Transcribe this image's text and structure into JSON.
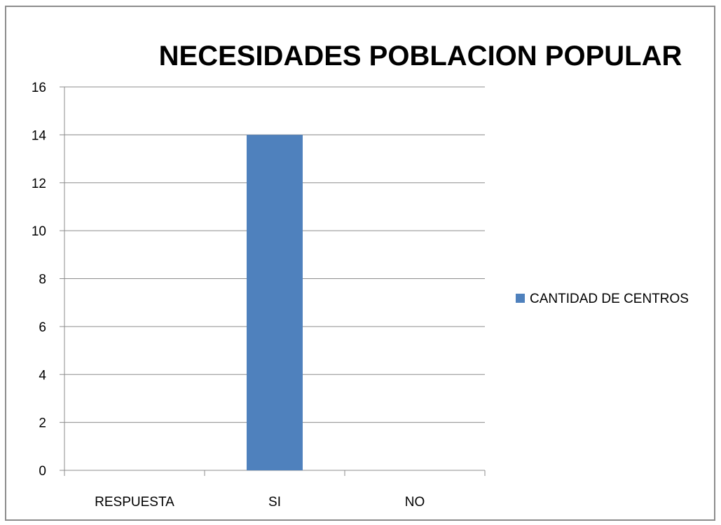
{
  "chart_data": {
    "type": "bar",
    "title": "NECESIDADES POBLACION POPULAR",
    "xlabel": "",
    "ylabel": "",
    "categories": [
      "RESPUESTA",
      "SI",
      "NO"
    ],
    "series": [
      {
        "name": "CANTIDAD DE CENTROS",
        "values": [
          0,
          14,
          0
        ],
        "color": "#4f81bd"
      }
    ],
    "ylim": [
      0,
      16
    ],
    "yticks": [
      0,
      2,
      4,
      6,
      8,
      10,
      12,
      14,
      16
    ],
    "grid": true,
    "legend_position": "right"
  }
}
